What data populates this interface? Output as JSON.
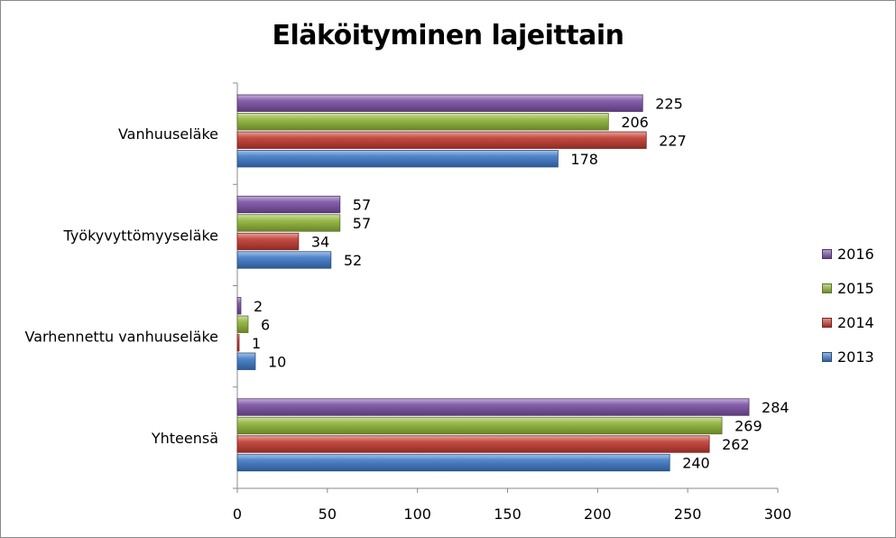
{
  "chart_data": {
    "type": "bar",
    "orientation": "horizontal",
    "title": "Eläköityminen lajeittain",
    "categories": [
      "Vanhuuseläke",
      "Työkyvyttömyyseläke",
      "Varhennettu vanhuuseläke",
      "Yhteensä"
    ],
    "series": [
      {
        "name": "2016",
        "color": "#7a4fa3",
        "values": [
          225,
          57,
          2,
          284
        ]
      },
      {
        "name": "2015",
        "color": "#8db336",
        "values": [
          206,
          57,
          6,
          269
        ]
      },
      {
        "name": "2014",
        "color": "#c0392f",
        "values": [
          227,
          34,
          1,
          262
        ]
      },
      {
        "name": "2013",
        "color": "#3d78c6",
        "values": [
          178,
          52,
          10,
          240
        ]
      }
    ],
    "xlim": [
      0,
      300
    ],
    "xticks": [
      0,
      50,
      100,
      150,
      200,
      250,
      300
    ],
    "xlabel": "",
    "ylabel": "",
    "legend_position": "right",
    "grid": false
  }
}
